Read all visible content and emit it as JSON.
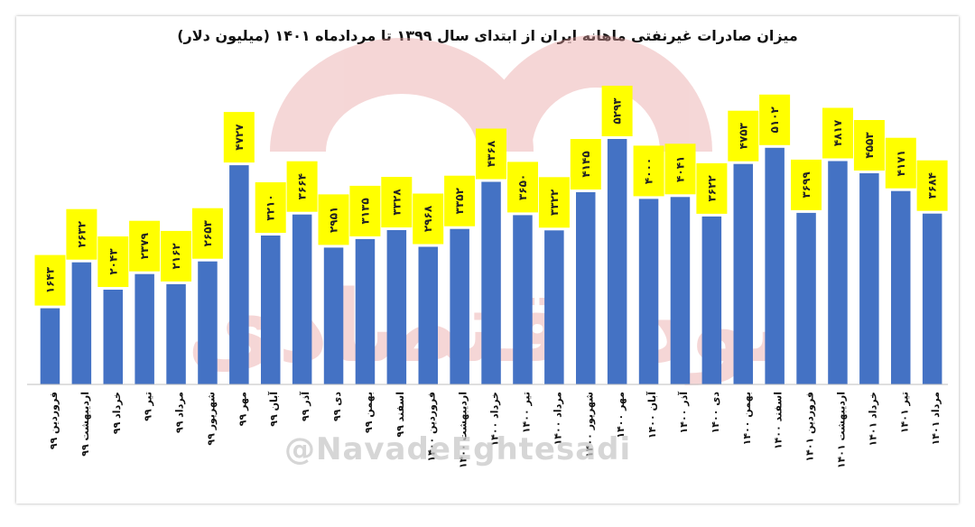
{
  "chart_data": {
    "type": "bar",
    "title": "میزان صادرات غیرنفتی ماهانه ایران از ابتدای سال ۱۳۹۹ تا مردادماه ۱۴۰۱ (میلیون دلار)",
    "xlabel": "",
    "ylabel": "",
    "ylim": [
      0,
      5500
    ],
    "grid": false,
    "legend": "none",
    "bar_color": "#4472c4",
    "label_bg_color": "#ffff00",
    "categories": [
      "فروردین ۹۹",
      "اردیبهشت ۹۹",
      "خرداد ۹۹",
      "تیر ۹۹",
      "مرداد ۹۹",
      "شهریور ۹۹",
      "مهر ۹۹",
      "آبان ۹۹",
      "آذر ۹۹",
      "دی ۹۹",
      "بهمن ۹۹",
      "اسفند ۹۹",
      "فروردین ۱۴۰۰",
      "اردیبهشت ۱۴۰۰",
      "خرداد ۱۴۰۰",
      "تیر ۱۴۰۰",
      "مرداد ۱۴۰۰",
      "شهریور ۱۴۰۰",
      "مهر ۱۴۰۰",
      "آبان ۱۴۰۰",
      "آذر ۱۴۰۰",
      "دی ۱۴۰۰",
      "بهمن ۱۴۰۰",
      "اسفند ۱۴۰۰",
      "فروردین ۱۴۰۱",
      "اردیبهشت ۱۴۰۱",
      "خرداد ۱۴۰۱",
      "تیر ۱۴۰۱",
      "مرداد ۱۴۰۱"
    ],
    "values": [
      1643,
      2632,
      2043,
      2379,
      2162,
      2653,
      4727,
      3210,
      3664,
      2951,
      3135,
      3328,
      2968,
      3352,
      4368,
      3650,
      3322,
      4145,
      5293,
      4000,
      4041,
      3622,
      4753,
      5102,
      3699,
      4817,
      4553,
      4171,
      3684
    ],
    "data_labels": [
      "۱۶۴۳",
      "۲۶۳۲",
      "۲۰۴۳",
      "۲۳۷۹",
      "۲۱۶۲",
      "۲۶۵۳",
      "۴۷۲۷",
      "۳۲۱۰",
      "۳۶۶۴",
      "۲۹۵۱",
      "۳۱۳۵",
      "۳۳۲۸",
      "۲۹۶۸",
      "۳۳۵۲",
      "۴۳۶۸",
      "۳۶۵۰",
      "۳۳۲۲",
      "۴۱۴۵",
      "۵۲۹۳",
      "۴۰۰۰",
      "۴۰۴۱",
      "۳۶۲۲",
      "۴۷۵۳",
      "۵۱۰۲",
      "۳۶۹۹",
      "۴۸۱۷",
      "۴۵۵۳",
      "۴۱۷۱",
      "۳۶۸۴"
    ],
    "labeled": [
      true,
      true,
      true,
      true,
      true,
      true,
      true,
      true,
      true,
      true,
      true,
      true,
      true,
      true,
      true,
      true,
      true,
      true,
      true,
      true,
      true,
      true,
      true,
      true,
      true,
      true,
      true,
      true,
      true
    ]
  },
  "watermark": {
    "handle": "@NavadeEghtesadi",
    "logo_text": "نود اقتصادی",
    "logo_color": "#e8a0a0"
  }
}
